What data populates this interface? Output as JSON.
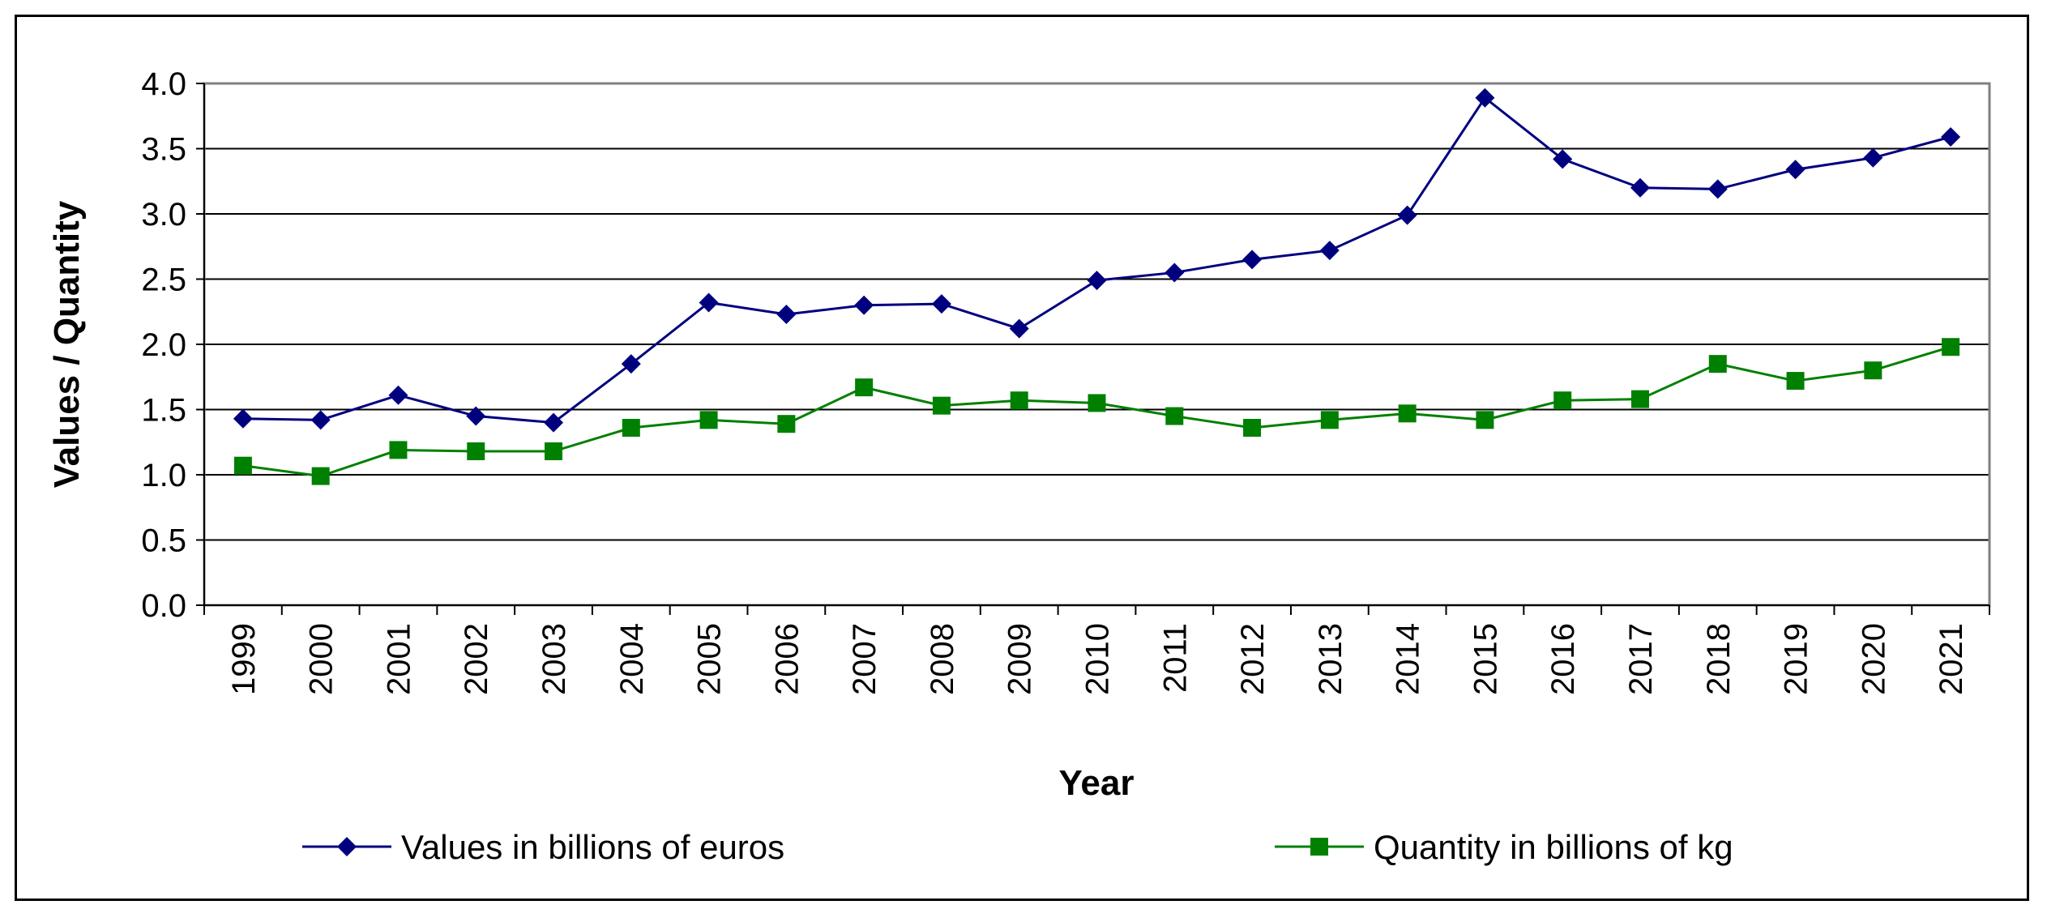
{
  "chart_data": {
    "type": "line",
    "title": "",
    "xlabel": "Year",
    "ylabel": "Values / Quantity",
    "ylim": [
      0,
      4
    ],
    "yticks": [
      "0.0",
      "0.5",
      "1.0",
      "1.5",
      "2.0",
      "2.5",
      "3.0",
      "3.5",
      "4.0"
    ],
    "grid": true,
    "legend_position": "bottom",
    "categories": [
      "1999",
      "2000",
      "2001",
      "2002",
      "2003",
      "2004",
      "2005",
      "2006",
      "2007",
      "2008",
      "2009",
      "2010",
      "2011",
      "2012",
      "2013",
      "2014",
      "2015",
      "2016",
      "2017",
      "2018",
      "2019",
      "2020",
      "2021"
    ],
    "series": [
      {
        "name": "Values in billions of euros",
        "color": "#00007f",
        "marker": "diamond",
        "values": [
          1.43,
          1.42,
          1.61,
          1.45,
          1.4,
          1.85,
          2.32,
          2.23,
          2.3,
          2.31,
          2.12,
          2.49,
          2.55,
          2.65,
          2.72,
          2.99,
          3.89,
          3.42,
          3.2,
          3.19,
          3.34,
          3.43,
          3.59
        ]
      },
      {
        "name": "Quantity in billions of kg",
        "color": "#008000",
        "marker": "square",
        "values": [
          1.07,
          0.99,
          1.19,
          1.18,
          1.18,
          1.36,
          1.42,
          1.39,
          1.67,
          1.53,
          1.57,
          1.55,
          1.45,
          1.36,
          1.42,
          1.47,
          1.42,
          1.57,
          1.58,
          1.85,
          1.72,
          1.8,
          1.98
        ]
      }
    ]
  }
}
